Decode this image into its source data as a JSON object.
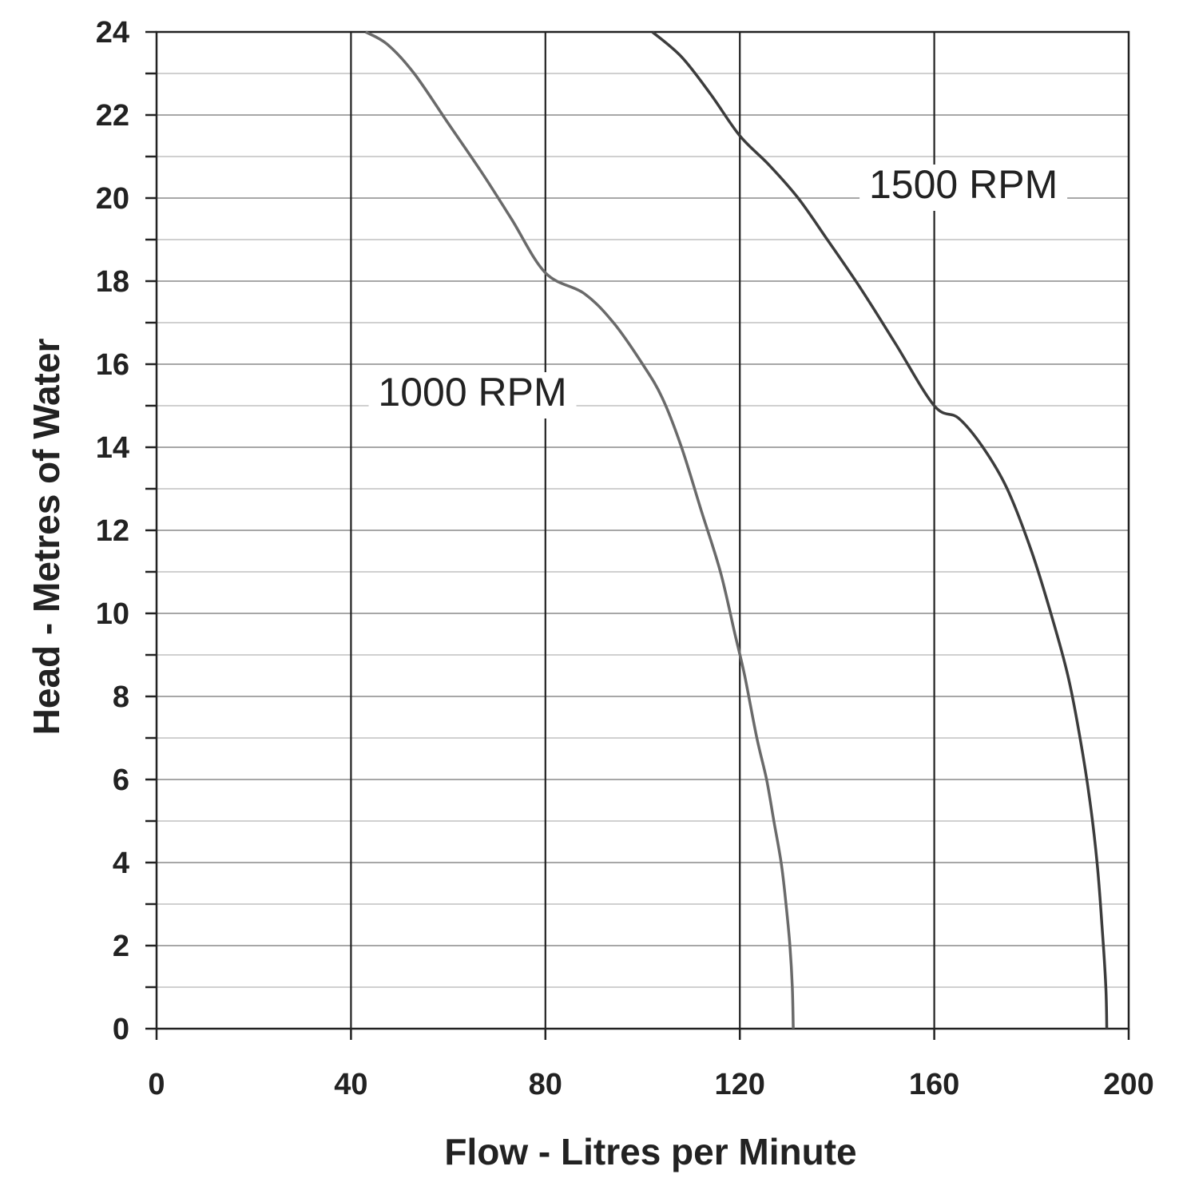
{
  "chart_data": {
    "type": "line",
    "xlabel": "Flow - Litres per Minute",
    "ylabel": "Head - Metres of Water",
    "xlim": [
      0,
      200
    ],
    "ylim": [
      0,
      24
    ],
    "x_ticks": [
      "0",
      "40",
      "80",
      "120",
      "160",
      "200"
    ],
    "y_ticks": [
      "0",
      "2",
      "4",
      "6",
      "8",
      "10",
      "12",
      "14",
      "16",
      "18",
      "20",
      "22",
      "24"
    ],
    "grid": true,
    "series": [
      {
        "name": "1000 RPM",
        "points": [
          [
            131,
            0
          ],
          [
            130.8,
            1
          ],
          [
            130.3,
            2
          ],
          [
            129.5,
            3
          ],
          [
            128.5,
            4
          ],
          [
            127,
            5
          ],
          [
            125.5,
            6
          ],
          [
            123.5,
            7
          ],
          [
            121,
            8.5
          ],
          [
            119,
            9.5
          ],
          [
            116,
            11
          ],
          [
            112,
            12.5
          ],
          [
            108,
            14
          ],
          [
            104,
            15.2
          ],
          [
            100,
            16
          ],
          [
            94,
            17
          ],
          [
            88,
            17.7
          ],
          [
            80,
            18.2
          ],
          [
            73,
            19.5
          ],
          [
            67,
            20.6
          ],
          [
            60,
            21.8
          ],
          [
            53,
            23
          ],
          [
            47.5,
            23.7
          ],
          [
            43,
            24
          ]
        ]
      },
      {
        "name": "1500 RPM",
        "points": [
          [
            195.5,
            0
          ],
          [
            195.3,
            1
          ],
          [
            194.5,
            2.5
          ],
          [
            193.5,
            4
          ],
          [
            192,
            5.5
          ],
          [
            190,
            7
          ],
          [
            187.5,
            8.5
          ],
          [
            184,
            10
          ],
          [
            180,
            11.5
          ],
          [
            175,
            13
          ],
          [
            170,
            14
          ],
          [
            165,
            14.7
          ],
          [
            160,
            15
          ],
          [
            152,
            16.5
          ],
          [
            145,
            17.8
          ],
          [
            138,
            19
          ],
          [
            132,
            20
          ],
          [
            126,
            20.8
          ],
          [
            120,
            21.5
          ],
          [
            114,
            22.5
          ],
          [
            108,
            23.4
          ],
          [
            102,
            24
          ]
        ]
      }
    ],
    "annotations": [
      {
        "text": "1000 RPM",
        "x": 65,
        "y": 15
      },
      {
        "text": "1500 RPM",
        "x": 166,
        "y": 20
      }
    ]
  }
}
